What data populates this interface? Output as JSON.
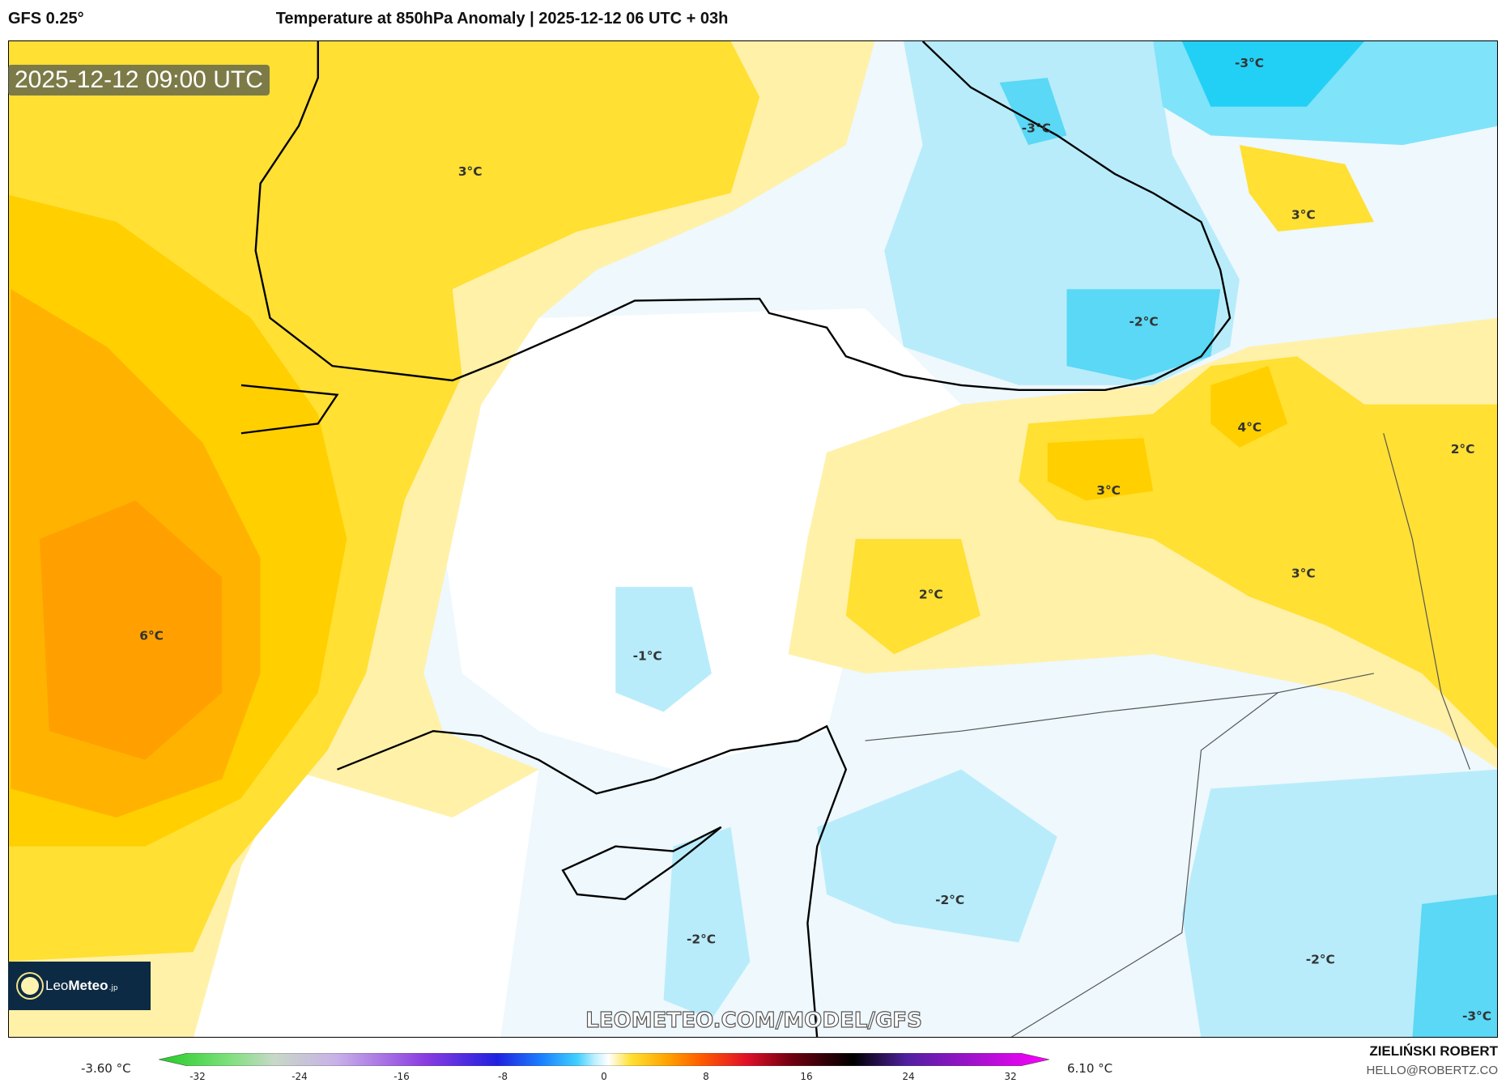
{
  "header": {
    "model": "GFS 0.25°",
    "title": "Temperature at 850hPa Anomaly | 2025-12-12 06 UTC + 03h"
  },
  "map": {
    "valid_time": "2025-12-12 09:00 UTC",
    "watermark": "LEOMETEO.COM/MODEL/GFS",
    "logo": {
      "part1": "Leo",
      "part2": "Meteo",
      "part3": ".jp"
    },
    "contour_labels": [
      "3°C",
      "-3°C",
      "-3°C",
      "3°C",
      "-2°C",
      "4°C",
      "2°C",
      "3°C",
      "3°C",
      "2°C",
      "6°C",
      "-1°C",
      "-2°C",
      "-2°C",
      "-2°C",
      "-3°C"
    ]
  },
  "colorbar": {
    "min_label": "-3.60 °C",
    "max_label": "6.10 °C",
    "ticks": [
      "-32",
      "-24",
      "-16",
      "-8",
      "0",
      "8",
      "16",
      "24",
      "32"
    ]
  },
  "credits": {
    "author": "ZIELIŃSKI ROBERT",
    "email": "HELLO@ROBERTZ.CO"
  }
}
